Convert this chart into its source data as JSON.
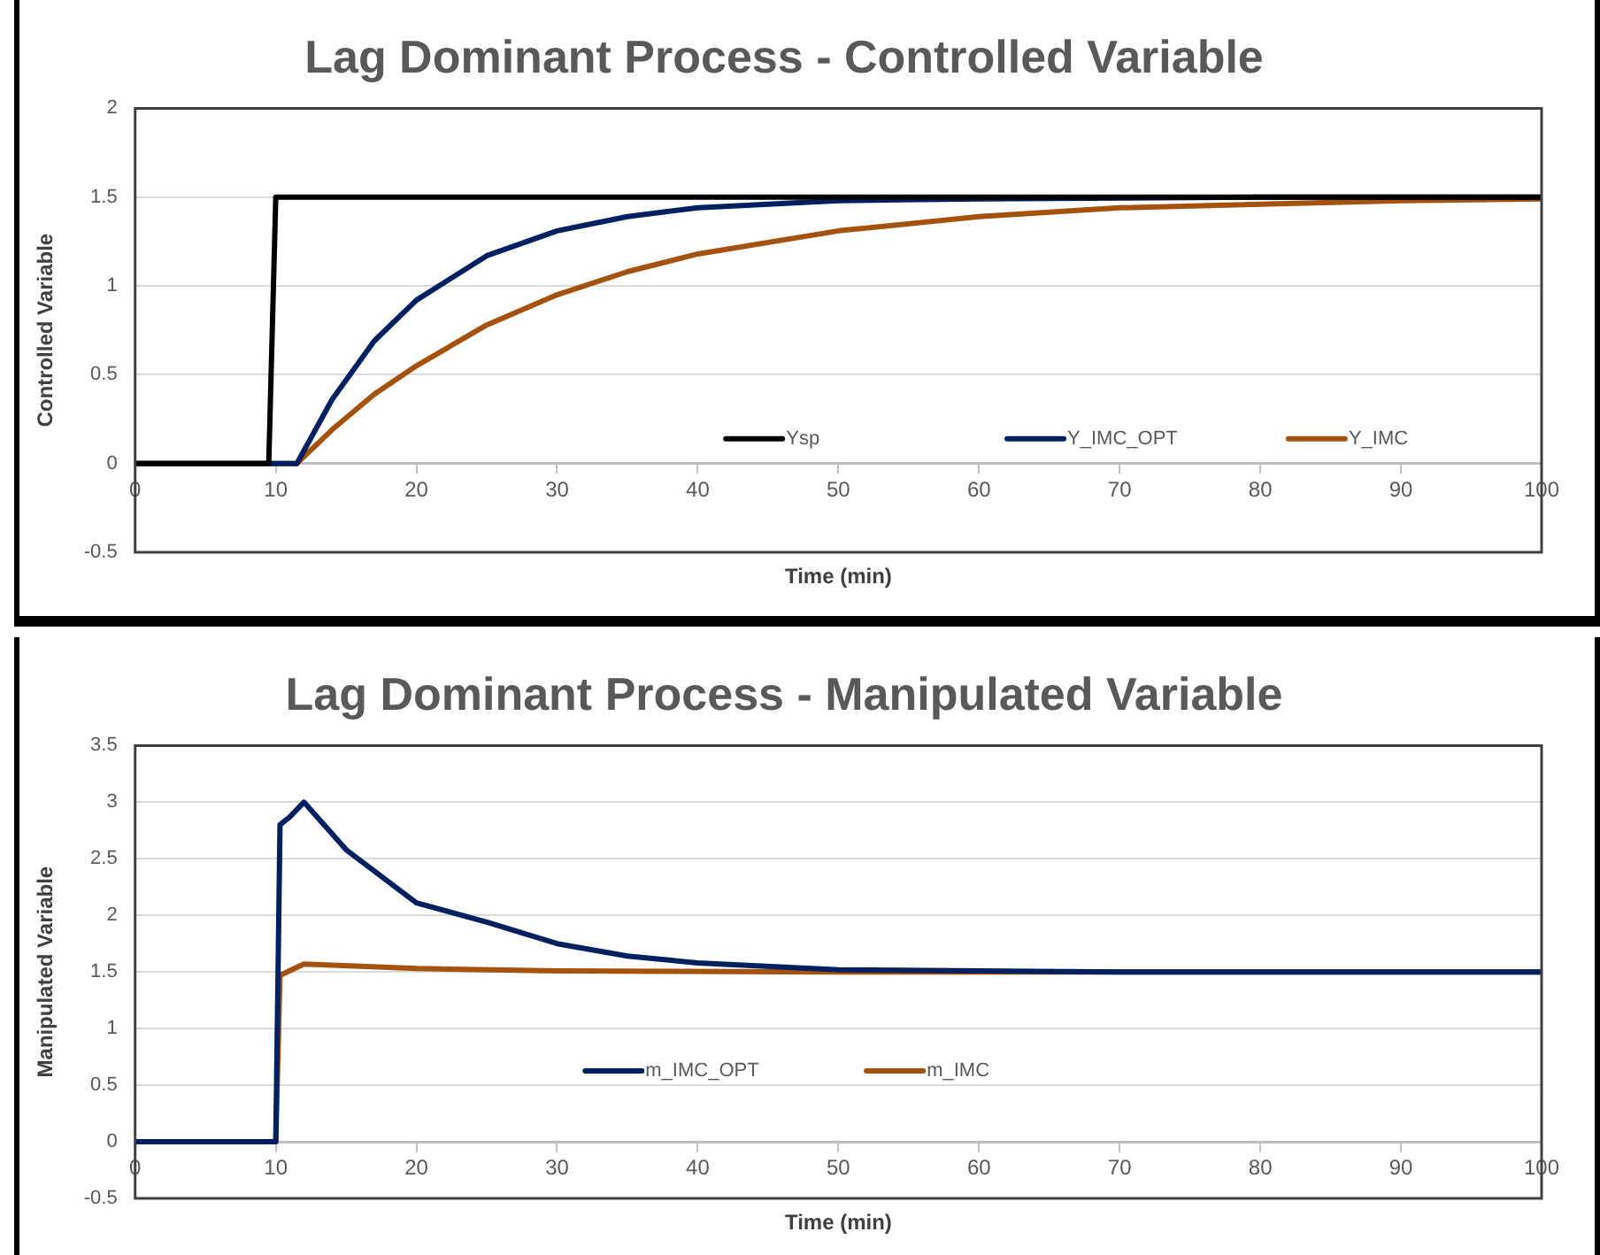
{
  "chart_data": [
    {
      "type": "line",
      "title": "Lag Dominant Process - Controlled Variable",
      "xlabel": "Time (min)",
      "ylabel": "Controlled Variable",
      "xlim": [
        0,
        100
      ],
      "xticks": [
        0,
        10,
        20,
        30,
        40,
        50,
        60,
        70,
        80,
        90,
        100
      ],
      "ylim": [
        -0.5,
        2
      ],
      "yticks": [
        -0.5,
        0,
        0.5,
        1,
        1.5,
        2
      ],
      "grid": "y",
      "legend": "bottom",
      "marker": "none",
      "line_style": "solid",
      "series": [
        {
          "name": "Ysp",
          "color": "#000000",
          "x": [
            0,
            9.5,
            10,
            100
          ],
          "values": [
            0,
            0,
            1.5,
            1.5
          ]
        },
        {
          "name": "Y_IMC_OPT",
          "color": "#002060",
          "x": [
            0,
            11.5,
            14,
            17,
            20,
            25,
            30,
            35,
            40,
            50,
            60,
            80,
            100
          ],
          "values": [
            0,
            0,
            0.36,
            0.69,
            0.92,
            1.17,
            1.31,
            1.39,
            1.44,
            1.48,
            1.49,
            1.5,
            1.5
          ]
        },
        {
          "name": "Y_IMC",
          "color": "#a5520f",
          "x": [
            0,
            11.5,
            14,
            17,
            20,
            25,
            30,
            35,
            40,
            50,
            60,
            70,
            80,
            90,
            100
          ],
          "values": [
            0,
            0,
            0.19,
            0.39,
            0.55,
            0.78,
            0.95,
            1.08,
            1.18,
            1.31,
            1.39,
            1.44,
            1.46,
            1.48,
            1.49
          ]
        }
      ]
    },
    {
      "type": "line",
      "title": "Lag Dominant Process - Manipulated Variable",
      "xlabel": "Time (min)",
      "ylabel": "Manipulated Variable",
      "xlim": [
        0,
        100
      ],
      "xticks": [
        0,
        10,
        20,
        30,
        40,
        50,
        60,
        70,
        80,
        90,
        100
      ],
      "ylim": [
        -0.5,
        3.5
      ],
      "yticks": [
        -0.5,
        0,
        0.5,
        1,
        1.5,
        2,
        2.5,
        3,
        3.5
      ],
      "grid": "y",
      "legend": "bottom",
      "marker": "none",
      "line_style": "solid",
      "series": [
        {
          "name": "m_IMC_OPT",
          "color": "#002060",
          "x": [
            0,
            10,
            10.3,
            11,
            12,
            15,
            20,
            25,
            30,
            35,
            40,
            50,
            60,
            70,
            100
          ],
          "values": [
            0,
            0,
            2.8,
            2.87,
            3.0,
            2.58,
            2.11,
            1.94,
            1.75,
            1.64,
            1.58,
            1.52,
            1.51,
            1.5,
            1.5
          ]
        },
        {
          "name": "m_IMC",
          "color": "#a5520f",
          "x": [
            0,
            10,
            10.3,
            12,
            20,
            30,
            50,
            100
          ],
          "values": [
            0,
            0,
            1.47,
            1.57,
            1.53,
            1.51,
            1.5,
            1.5
          ]
        }
      ]
    }
  ]
}
